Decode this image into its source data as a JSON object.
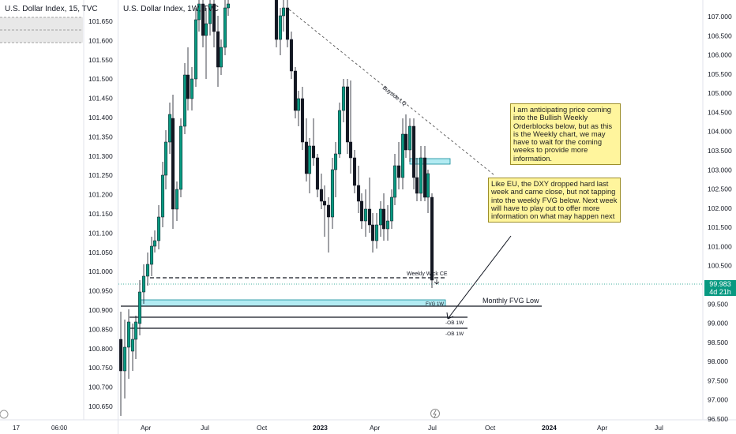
{
  "left_chart": {
    "title": "U.S. Dollar Index, 15, TVC",
    "y_labels": [
      "101.650",
      "101.600",
      "101.550",
      "101.500",
      "101.450",
      "101.400",
      "101.350",
      "101.300",
      "101.250",
      "101.200",
      "101.150",
      "101.100",
      "101.050",
      "101.000",
      "100.950",
      "100.900",
      "100.850",
      "100.800",
      "100.750",
      "100.700",
      "100.650"
    ],
    "x_labels": [
      "17",
      "06:00"
    ]
  },
  "right_chart": {
    "title": "U.S. Dollar Index, 1W, TVC",
    "last_price": "99.983",
    "countdown": "4d 21h",
    "up_color": "#089981",
    "down_color": "#131722",
    "accent_color": "#0e8a98"
  },
  "annotations": {
    "buyside": "Buyside LQ",
    "weekly_wick": "Weekly Wick CE",
    "fvg": "FVG 1W",
    "monthly_fvg": "Monthly FVG Low",
    "ob1": "-OB 1W",
    "ob2": "-OB 1W"
  },
  "notes": {
    "note1": "I am anticipating price coming into the Bullish Weekly Orderblocks below, but as this is the Weekly chart, we may have to wait for the coming weeks to provide more information.",
    "note2": "Like EU, the DXY dropped hard last week and came close, but not tapping into the weekly FVG below. Next week will have to play out to offer more information on what may happen next"
  },
  "chart_data": {
    "type": "candlestick",
    "title": "U.S. Dollar Index, 1W, TVC",
    "y_axis_labels": [
      "107.000",
      "106.500",
      "106.000",
      "105.500",
      "105.000",
      "104.500",
      "104.000",
      "103.500",
      "103.000",
      "102.500",
      "102.000",
      "101.500",
      "101.000",
      "100.500",
      "100.000",
      "99.500",
      "99.000",
      "98.500",
      "98.000",
      "97.500",
      "97.000",
      "96.500"
    ],
    "x_axis_labels": [
      "Apr",
      "Jul",
      "Oct",
      "2023",
      "Apr",
      "Jul",
      "Oct",
      "2024",
      "Apr",
      "Jul"
    ],
    "last_price": 99.983
  }
}
